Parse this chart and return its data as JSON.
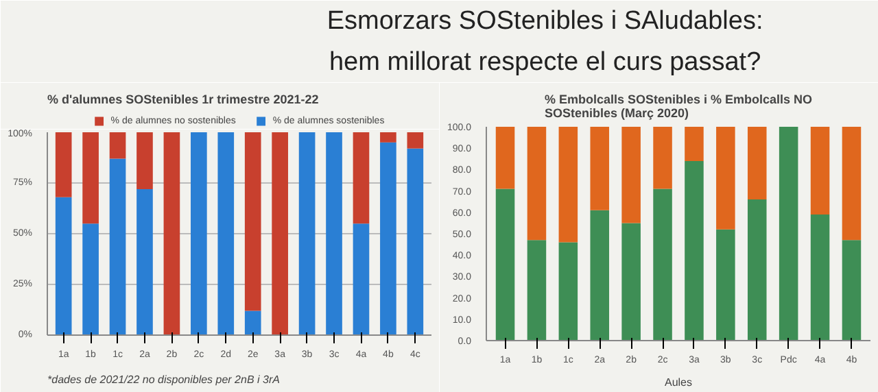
{
  "chart_data": [
    {
      "type": "other",
      "title": "Esmorzars SOStenibles i SAludables:\nhem millorat respecte el curs passat?"
    },
    {
      "type": "bar",
      "title": "% d'alumnes SOStenibles 1r trimestre 2021-22",
      "stacked": true,
      "categories": [
        "1a",
        "1b",
        "1c",
        "2a",
        "2b",
        "2c",
        "2d",
        "2e",
        "3a",
        "3b",
        "3c",
        "4a",
        "4b",
        "4c"
      ],
      "series": [
        {
          "name": "% de alumnes sostenibles",
          "color": "#2a7fd4",
          "values": [
            68,
            55,
            87,
            72,
            0,
            100,
            100,
            12,
            0,
            100,
            100,
            55,
            95,
            92
          ]
        },
        {
          "name": "% de alumnes no sostenibles",
          "color": "#c8402e",
          "values": [
            32,
            45,
            13,
            28,
            100,
            0,
            0,
            88,
            100,
            0,
            0,
            45,
            5,
            8
          ]
        }
      ],
      "ylim": [
        0,
        100
      ],
      "yticks": [
        {
          "value": 0,
          "label": "0%"
        },
        {
          "value": 25,
          "label": "25%"
        },
        {
          "value": 50,
          "label": "50%"
        },
        {
          "value": 75,
          "label": "75%"
        },
        {
          "value": 100,
          "label": "100%"
        }
      ],
      "grid": "y",
      "legend": "top",
      "annotations": [
        "*dades de 2021/22 no disponibles per 2nB i 3rA"
      ]
    },
    {
      "type": "bar",
      "title": "% Embolcalls SOStenibles i % Embolcalls NO\nSOStenibles (Març 2020)",
      "stacked": true,
      "xlabel": "Aules",
      "categories": [
        "1a",
        "1b",
        "1c",
        "2a",
        "2b",
        "2c",
        "3a",
        "3b",
        "3c",
        "Pdc",
        "4a",
        "4b"
      ],
      "series": [
        {
          "color": "#3e8e55",
          "values": [
            71,
            47,
            46,
            61,
            55,
            71,
            84,
            52,
            66,
            100,
            59,
            47
          ]
        },
        {
          "color": "#e0671e",
          "values": [
            29,
            53,
            54,
            39,
            45,
            29,
            16,
            48,
            34,
            0,
            41,
            53
          ]
        }
      ],
      "ylim": [
        0,
        100
      ],
      "yticks": [
        {
          "value": 0,
          "label": "0.0"
        },
        {
          "value": 10,
          "label": "10.0"
        },
        {
          "value": 20,
          "label": "20.0"
        },
        {
          "value": 30,
          "label": "30.0"
        },
        {
          "value": 40,
          "label": "40.0"
        },
        {
          "value": 50,
          "label": "50.0"
        },
        {
          "value": 60,
          "label": "60.0"
        },
        {
          "value": 70,
          "label": "70.0"
        },
        {
          "value": 80,
          "label": "80.0"
        },
        {
          "value": 90,
          "label": "90.0"
        },
        {
          "value": 100,
          "label": "100.0"
        }
      ]
    }
  ]
}
